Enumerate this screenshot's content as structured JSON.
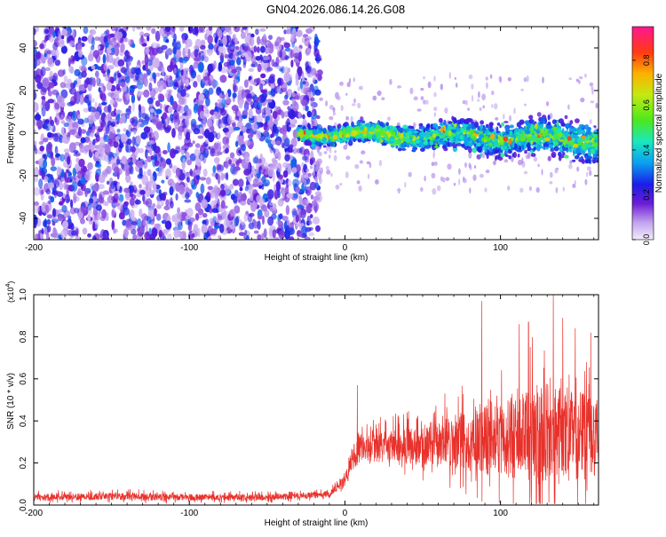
{
  "title": "GN04.2026.086.14.26.G08",
  "chart_data": [
    {
      "type": "heatmap",
      "name": "spectrogram",
      "xlabel": "Height of straight line (km)",
      "ylabel": "Frequency (Hz)",
      "xlim": [
        -200,
        163
      ],
      "ylim": [
        -50,
        50
      ],
      "xticks": [
        -200,
        -100,
        0,
        100
      ],
      "yticks": [
        -40,
        -20,
        0,
        20,
        40
      ],
      "colorbar": {
        "label": "Normalized spectral amplitude",
        "range": [
          0.0,
          0.95
        ],
        "ticks": [
          0.0,
          0.2,
          0.4,
          0.6,
          0.8
        ]
      },
      "noise_region_km": [
        -200,
        -20
      ],
      "signal_start_km": -30,
      "signal_band_hz": [
        -10,
        10
      ],
      "signal_peak_amplitude": 0.9
    },
    {
      "type": "line",
      "name": "snr",
      "xlabel": "Height of straight line (km)",
      "ylabel": "SNR (10 * v/v)",
      "scale_label": "(x10",
      "scale_exponent": "4",
      "scale_close": ")",
      "xlim": [
        -200,
        163
      ],
      "ylim": [
        0,
        1.0
      ],
      "xticks": [
        -200,
        -100,
        0,
        100
      ],
      "yticks": [
        0.0,
        0.2,
        0.4,
        0.6,
        0.8,
        1.0
      ],
      "color": "#e8312b",
      "profile": [
        {
          "x": -200,
          "base": 0.035,
          "amp": 0.03
        },
        {
          "x": -150,
          "base": 0.04,
          "amp": 0.035
        },
        {
          "x": -100,
          "base": 0.035,
          "amp": 0.03
        },
        {
          "x": -50,
          "base": 0.035,
          "amp": 0.03
        },
        {
          "x": -10,
          "base": 0.05,
          "amp": 0.03
        },
        {
          "x": 0,
          "base": 0.12,
          "amp": 0.05
        },
        {
          "x": 5,
          "base": 0.22,
          "amp": 0.12
        },
        {
          "x": 10,
          "base": 0.26,
          "amp": 0.12
        },
        {
          "x": 30,
          "base": 0.27,
          "amp": 0.15
        },
        {
          "x": 50,
          "base": 0.27,
          "amp": 0.18
        },
        {
          "x": 70,
          "base": 0.29,
          "amp": 0.25
        },
        {
          "x": 90,
          "base": 0.3,
          "amp": 0.35
        },
        {
          "x": 110,
          "base": 0.31,
          "amp": 0.42
        },
        {
          "x": 130,
          "base": 0.31,
          "amp": 0.5
        },
        {
          "x": 163,
          "base": 0.3,
          "amp": 0.4
        }
      ],
      "spikes": [
        {
          "x": 8,
          "y": 0.57
        },
        {
          "x": 88,
          "y": 0.97
        },
        {
          "x": 112,
          "y": 0.86
        },
        {
          "x": 118,
          "y": 0.87
        },
        {
          "x": 134,
          "y": 1.0
        },
        {
          "x": 140,
          "y": 0.89
        },
        {
          "x": 148,
          "y": 0.84
        },
        {
          "x": 158,
          "y": 0.82
        }
      ]
    }
  ]
}
